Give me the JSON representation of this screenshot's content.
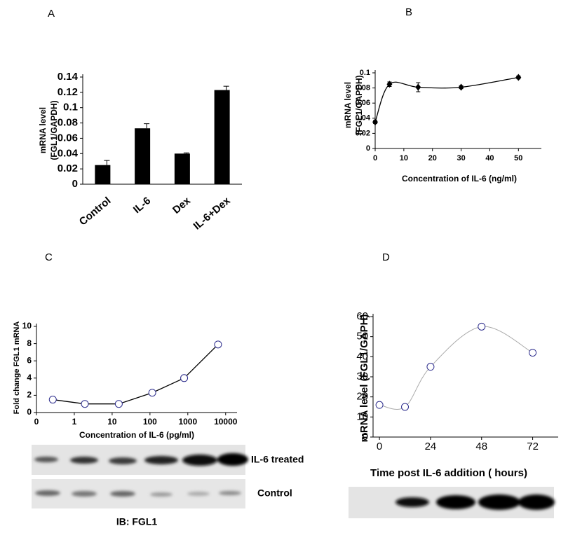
{
  "chart_data": [
    {
      "type": "bar",
      "title": "A",
      "categories": [
        "Control",
        "IL-6",
        "Dex",
        "IL-6+Dex"
      ],
      "values": [
        0.025,
        0.073,
        0.04,
        0.123
      ],
      "errors": [
        0.006,
        0.006,
        0.001,
        0.005
      ],
      "color": "#000000",
      "ylabel": [
        "mRNA level",
        "(FGL1/GAPDH)"
      ],
      "ylim": [
        0,
        0.14
      ],
      "yticks": [
        0,
        0.02,
        0.04,
        0.06,
        0.08,
        0.1,
        0.12,
        0.14
      ]
    },
    {
      "type": "line",
      "title": "B",
      "x": [
        0,
        5,
        15,
        30,
        50
      ],
      "values": [
        0.035,
        0.085,
        0.081,
        0.081,
        0.094
      ],
      "errors": [
        0.002,
        0.003,
        0.006,
        0.002,
        0.002
      ],
      "color": "#000000",
      "marker": "diamond",
      "marker_color": "#000000",
      "smooth": true,
      "xlabel": "Concentration of IL-6 (ng/ml)",
      "ylabel": [
        "mRNA level",
        "(FGL1/GAPDH)"
      ],
      "xlim": [
        0,
        58
      ],
      "xticks": [
        0,
        10,
        20,
        30,
        40,
        50
      ],
      "ylim": [
        0,
        0.1
      ],
      "yticks": [
        0,
        0.02,
        0.04,
        0.06,
        0.08,
        0.1
      ]
    },
    {
      "type": "line",
      "title": "C",
      "x": [
        0.27,
        1.9,
        15,
        115,
        800,
        6300
      ],
      "values": [
        1.5,
        1,
        1,
        2.3,
        4,
        7.9
      ],
      "color": "#000000",
      "marker": "circle",
      "marker_color": "#2b2b8c",
      "smooth": false,
      "xscale": "log",
      "xlabel": "Concentration of IL-6 (pg/ml)",
      "ylabel": "Fold change FGL1 mRNA",
      "xlim": [
        0.1,
        20000
      ],
      "xticks": [
        {
          "value": 0.1,
          "label": "0"
        },
        1,
        10,
        100,
        1000,
        10000
      ],
      "ylim": [
        0,
        10
      ],
      "yticks": [
        0,
        2,
        4,
        6,
        8,
        10
      ],
      "blot_labels": [
        "IL-6 treated",
        "Control",
        "IB: FGL1"
      ]
    },
    {
      "type": "line",
      "title": "D",
      "x": [
        0,
        12,
        24,
        48,
        72
      ],
      "values": [
        16,
        15,
        35,
        55,
        42
      ],
      "color": "#aaaaaa",
      "marker": "circle",
      "marker_color": "#2b2b8c",
      "smooth": true,
      "xlabel": "Time post IL-6 addition ( hours)",
      "ylabel": "mRNA level (FGL1/GAPH)",
      "xlim": [
        -3,
        84
      ],
      "xticks": [
        0,
        24,
        48,
        72
      ],
      "ylim": [
        0,
        60
      ],
      "yticks": [
        0,
        10,
        20,
        30,
        40,
        50,
        60
      ]
    }
  ]
}
